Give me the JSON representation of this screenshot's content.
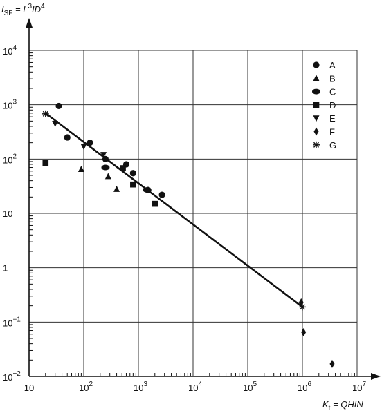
{
  "chart_data": {
    "type": "scatter",
    "title": "",
    "xscale": "log",
    "yscale": "log",
    "xlim": [
      10,
      10000000
    ],
    "ylim": [
      0.01,
      10000
    ],
    "grid": true,
    "legend_position": "top-right",
    "xlabel": {
      "main": "K",
      "sub": "t",
      "rest": " = QHIN"
    },
    "ylabel": {
      "main": "I",
      "sub": "SF",
      "rest1": " = L",
      "sup1": "3",
      "rest2": "ID",
      "sup2": "4"
    },
    "x_ticks": [
      {
        "value": 10,
        "base": "10",
        "exp": ""
      },
      {
        "value": 100,
        "base": "10",
        "exp": "2"
      },
      {
        "value": 1000,
        "base": "10",
        "exp": "3"
      },
      {
        "value": 10000,
        "base": "10",
        "exp": "4"
      },
      {
        "value": 100000,
        "base": "10",
        "exp": "5"
      },
      {
        "value": 1000000,
        "base": "10",
        "exp": "6"
      },
      {
        "value": 10000000,
        "base": "10",
        "exp": "7"
      }
    ],
    "y_ticks": [
      {
        "value": 0.01,
        "base": "10",
        "exp": "−2"
      },
      {
        "value": 0.1,
        "base": "10",
        "exp": "−1"
      },
      {
        "value": 1,
        "base": "1",
        "exp": ""
      },
      {
        "value": 10,
        "base": "10",
        "exp": ""
      },
      {
        "value": 100,
        "base": "10",
        "exp": "2"
      },
      {
        "value": 1000,
        "base": "10",
        "exp": "3"
      },
      {
        "value": 10000,
        "base": "10",
        "exp": "4"
      }
    ],
    "fit_line": {
      "x": [
        20,
        1000000
      ],
      "y": [
        700,
        0.19
      ]
    },
    "series": [
      {
        "name": "A",
        "marker": "circle",
        "points": [
          [
            35,
            950
          ],
          [
            50,
            250
          ],
          [
            130,
            200
          ],
          [
            250,
            100
          ],
          [
            600,
            80
          ],
          [
            800,
            55
          ],
          [
            1500,
            27
          ],
          [
            2700,
            22
          ]
        ]
      },
      {
        "name": "B",
        "marker": "triangle",
        "points": [
          [
            90,
            65
          ],
          [
            280,
            48
          ],
          [
            400,
            28
          ]
        ]
      },
      {
        "name": "C",
        "marker": "ellipse",
        "points": [
          [
            250,
            70
          ],
          [
            1450,
            27
          ]
        ]
      },
      {
        "name": "D",
        "marker": "square",
        "points": [
          [
            20,
            85
          ],
          [
            520,
            68
          ],
          [
            800,
            34
          ],
          [
            2000,
            15
          ]
        ]
      },
      {
        "name": "E",
        "marker": "triangle-down",
        "points": [
          [
            30,
            450
          ],
          [
            100,
            170
          ],
          [
            230,
            120
          ]
        ]
      },
      {
        "name": "F",
        "marker": "diamond",
        "points": [
          [
            950000,
            0.23
          ],
          [
            1050000,
            0.065
          ],
          [
            3500000,
            0.017
          ]
        ]
      },
      {
        "name": "G",
        "marker": "star",
        "points": [
          [
            20,
            680
          ],
          [
            1000000,
            0.19
          ]
        ]
      }
    ]
  }
}
